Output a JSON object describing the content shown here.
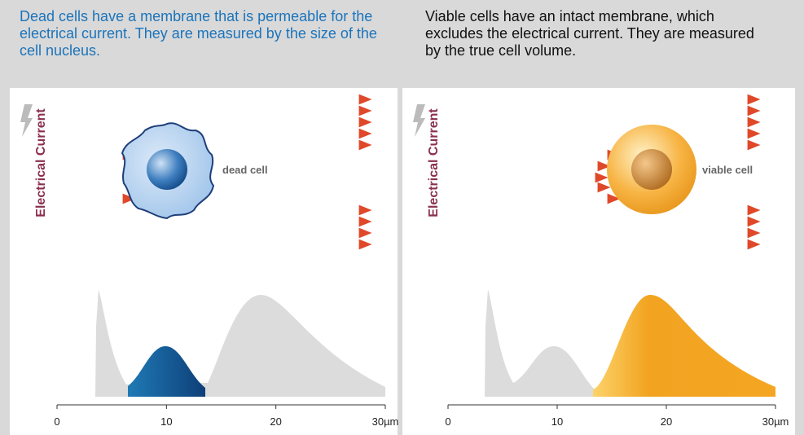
{
  "panels": [
    {
      "caption": "Dead cells have a membrane that is permeable for the electrical current. They are measured by the size of the cell nucleus.",
      "axis_title": "Electrical Current",
      "cell_label": "dead cell",
      "ticks": [
        "0",
        "10",
        "20",
        "30µm"
      ]
    },
    {
      "caption": "Viable cells have an intact membrane, which excludes the electrical current. They are measured by the true cell volume.",
      "axis_title": "Electrical Current",
      "cell_label": "viable cell",
      "ticks": [
        "0",
        "10",
        "20",
        "30µm"
      ]
    }
  ]
}
